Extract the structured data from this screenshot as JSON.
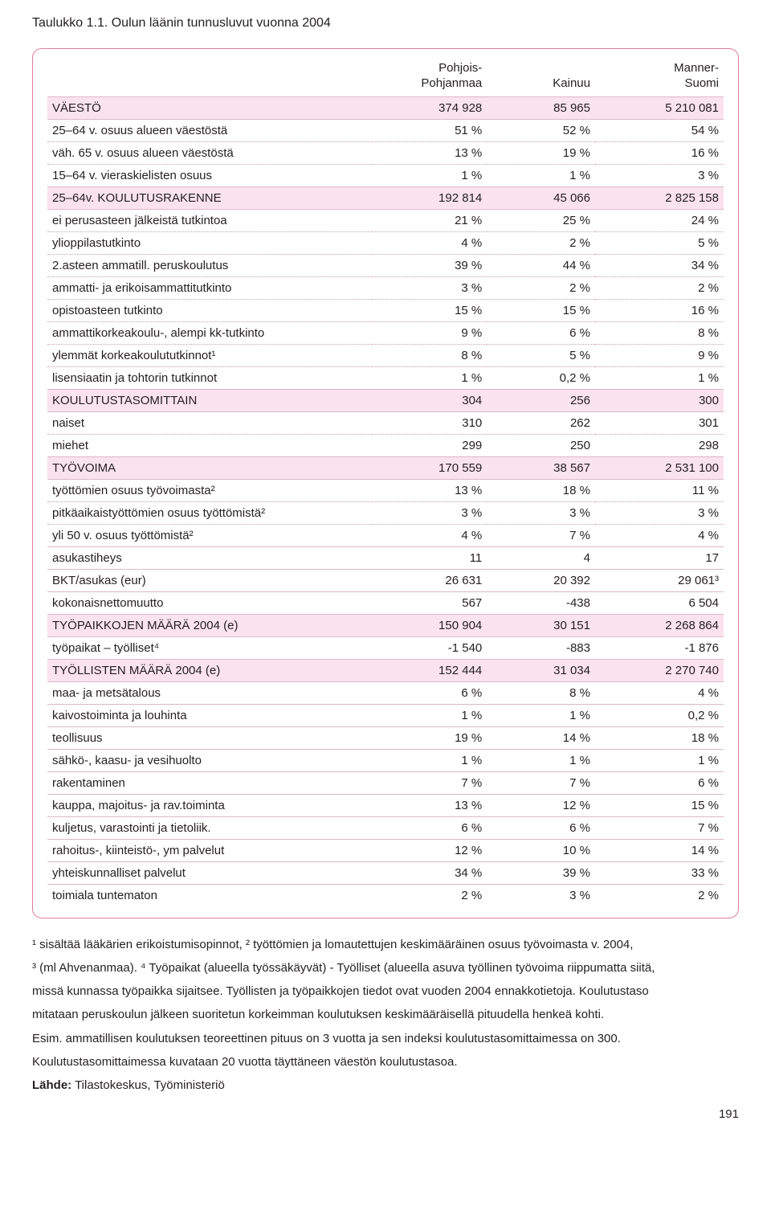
{
  "caption": "Taulukko 1.1. Oulun läänin tunnusluvut vuonna 2004",
  "colors": {
    "border": "#dd7d9f",
    "section_bg": "#fbe3ed",
    "dotted": "#c79fb4",
    "text": "#231f20",
    "page_bg": "#ffffff"
  },
  "columns": {
    "c1": {
      "line1": "Pohjois-",
      "line2": "Pohjanmaa"
    },
    "c2": {
      "line1": "",
      "line2": "Kainuu"
    },
    "c3": {
      "line1": "Manner-",
      "line2": "Suomi"
    }
  },
  "rows": [
    {
      "type": "section",
      "label": "VÄESTÖ",
      "v": [
        "374 928",
        "85 965",
        "5 210 081"
      ]
    },
    {
      "type": "dotted",
      "label": "25–64 v. osuus alueen väestöstä",
      "v": [
        "51 %",
        "52 %",
        "54 %"
      ]
    },
    {
      "type": "dotted",
      "label": "väh. 65 v. osuus alueen väestöstä",
      "v": [
        "13 %",
        "19 %",
        "16 %"
      ]
    },
    {
      "type": "solid",
      "label": "15–64 v. vieraskielisten osuus",
      "v": [
        "1 %",
        "1 %",
        "3 %"
      ]
    },
    {
      "type": "section",
      "label": "25–64v. KOULUTUSRAKENNE",
      "v": [
        "192 814",
        "45 066",
        "2 825 158"
      ]
    },
    {
      "type": "dotted",
      "label": "ei perusasteen jälkeistä tutkintoa",
      "v": [
        "21 %",
        "25 %",
        "24 %"
      ]
    },
    {
      "type": "dotted",
      "label": "ylioppilastutkinto",
      "v": [
        "4 %",
        "2 %",
        "5 %"
      ]
    },
    {
      "type": "dotted",
      "label": "2.asteen ammatill. peruskoulutus",
      "v": [
        "39 %",
        "44 %",
        "34 %"
      ]
    },
    {
      "type": "dotted",
      "label": "ammatti- ja erikoisammattitutkinto",
      "v": [
        "3 %",
        "2 %",
        "2 %"
      ]
    },
    {
      "type": "dotted",
      "label": "opistoasteen tutkinto",
      "v": [
        "15 %",
        "15 %",
        "16 %"
      ]
    },
    {
      "type": "dotted",
      "label": "ammattikorkeakoulu-, alempi kk-tutkinto",
      "v": [
        "9 %",
        "6 %",
        "8 %"
      ]
    },
    {
      "type": "dotted",
      "label": "ylemmät korkeakoulututkinnot¹",
      "v": [
        "8 %",
        "5 %",
        "9 %"
      ]
    },
    {
      "type": "solid",
      "label": "lisensiaatin ja tohtorin tutkinnot",
      "v": [
        "1 %",
        "0,2 %",
        "1 %"
      ]
    },
    {
      "type": "section",
      "label": "KOULUTUSTASOMITTAIN",
      "v": [
        "304",
        "256",
        "300"
      ]
    },
    {
      "type": "dotted",
      "label": "naiset",
      "v": [
        "310",
        "262",
        "301"
      ]
    },
    {
      "type": "solid",
      "label": "miehet",
      "v": [
        "299",
        "250",
        "298"
      ]
    },
    {
      "type": "section",
      "label": "TYÖVOIMA",
      "v": [
        "170 559",
        "38 567",
        "2 531 100"
      ]
    },
    {
      "type": "dotted",
      "label": "työttömien osuus työvoimasta²",
      "v": [
        "13 %",
        "18 %",
        "11 %"
      ]
    },
    {
      "type": "dotted",
      "label": "pitkäaikaistyöttömien osuus työttömistä²",
      "v": [
        "3 %",
        "3 %",
        "3 %"
      ]
    },
    {
      "type": "solid",
      "label": "yli 50 v. osuus työttömistä²",
      "v": [
        "4 %",
        "7 %",
        "4 %"
      ]
    },
    {
      "type": "solid",
      "label": "asukastiheys",
      "v": [
        "11",
        "4",
        "17"
      ]
    },
    {
      "type": "solid",
      "label": "BKT/asukas (eur)",
      "v": [
        "26 631",
        "20 392",
        "29 061³"
      ]
    },
    {
      "type": "solid",
      "label": "kokonaisnettomuutto",
      "v": [
        "567",
        "-438",
        "6 504"
      ]
    },
    {
      "type": "section",
      "label": "TYÖPAIKKOJEN MÄÄRÄ 2004 (e)",
      "v": [
        "150 904",
        "30 151",
        "2 268 864"
      ]
    },
    {
      "type": "solid",
      "label": "työpaikat – työlliset⁴",
      "v": [
        "-1 540",
        "-883",
        "-1 876"
      ]
    },
    {
      "type": "section",
      "label": "TYÖLLISTEN MÄÄRÄ 2004 (e)",
      "v": [
        "152 444",
        "31 034",
        "2 270 740"
      ]
    },
    {
      "type": "solid",
      "label": "maa- ja metsätalous",
      "v": [
        "6 %",
        "8 %",
        "4 %"
      ]
    },
    {
      "type": "solid",
      "label": "kaivostoiminta ja louhinta",
      "v": [
        "1 %",
        "1 %",
        "0,2 %"
      ]
    },
    {
      "type": "solid",
      "label": "teollisuus",
      "v": [
        "19 %",
        "14 %",
        "18 %"
      ]
    },
    {
      "type": "solid",
      "label": "sähkö-, kaasu- ja vesihuolto",
      "v": [
        "1 %",
        "1 %",
        "1 %"
      ]
    },
    {
      "type": "solid",
      "label": "rakentaminen",
      "v": [
        "7 %",
        "7 %",
        "6 %"
      ]
    },
    {
      "type": "solid",
      "label": "kauppa, majoitus- ja rav.toiminta",
      "v": [
        "13 %",
        "12 %",
        "15 %"
      ]
    },
    {
      "type": "solid",
      "label": "kuljetus, varastointi ja tietoliik.",
      "v": [
        "6 %",
        "6 %",
        "7 %"
      ]
    },
    {
      "type": "solid",
      "label": "rahoitus-, kiinteistö-, ym palvelut",
      "v": [
        "12 %",
        "10 %",
        "14 %"
      ]
    },
    {
      "type": "solid",
      "label": "yhteiskunnalliset  palvelut",
      "v": [
        "34 %",
        "39 %",
        "33 %"
      ]
    },
    {
      "type": "none",
      "label": "toimiala tuntematon",
      "v": [
        "2 %",
        "3 %",
        "2 %"
      ]
    }
  ],
  "footnotes": {
    "p1": "¹ sisältää lääkärien erikoistumisopinnot, ² työttömien ja lomautettujen keskimääräinen osuus työvoimasta v. 2004,",
    "p2": "³ (ml Ahvenanmaa). ⁴ Työpaikat (alueella työssäkäyvät) - Työlliset (alueella asuva työllinen työvoima riippumatta siitä,",
    "p3": "missä kunnassa työpaikka sijaitsee. Työllisten ja työpaikkojen tiedot ovat vuoden 2004 ennakkotietoja. Koulutustaso",
    "p4": "mitataan peruskoulun jälkeen suoritetun korkeimman koulutuksen keskimääräisellä pituudella henkeä kohti.",
    "p5": "Esim. ammatillisen koulutuksen teoreettinen pituus on 3 vuotta ja sen indeksi koulutustasomittaimessa on 300.",
    "p6": "Koulutustasomittaimessa kuvataan 20 vuotta täyttäneen väestön koulutustasoa.",
    "lahde_label": "Lähde:",
    "lahde_value": " Tilastokeskus, Työministeriö"
  },
  "page_number": "191"
}
